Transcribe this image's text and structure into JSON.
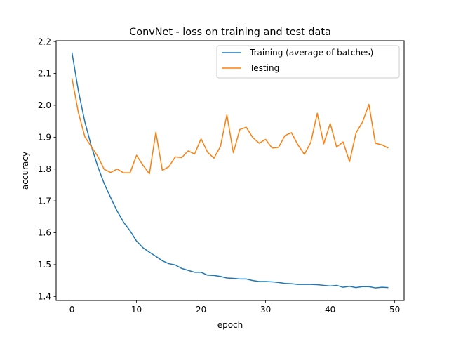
{
  "chart_data": {
    "type": "line",
    "title": "ConvNet - loss on training and test data",
    "xlabel": "epoch",
    "ylabel": "accuracy",
    "xlim": [
      -2.45,
      51.45
    ],
    "ylim": [
      1.3875,
      2.2025
    ],
    "xticks": [
      0,
      10,
      20,
      30,
      40,
      50
    ],
    "yticks": [
      1.4,
      1.5,
      1.6,
      1.7,
      1.8,
      1.9,
      2.0,
      2.1,
      2.2
    ],
    "grid": false,
    "legend_position": "top-right",
    "x": [
      0,
      1,
      2,
      3,
      4,
      5,
      6,
      7,
      8,
      9,
      10,
      11,
      12,
      13,
      14,
      15,
      16,
      17,
      18,
      19,
      20,
      21,
      22,
      23,
      24,
      25,
      26,
      27,
      28,
      29,
      30,
      31,
      32,
      33,
      34,
      35,
      36,
      37,
      38,
      39,
      40,
      41,
      42,
      43,
      44,
      45,
      46,
      47,
      48,
      49
    ],
    "series": [
      {
        "name": "Training (average of batches)",
        "color": "#1f77b4",
        "values": [
          2.166,
          2.045,
          1.948,
          1.872,
          1.808,
          1.754,
          1.71,
          1.668,
          1.633,
          1.606,
          1.574,
          1.553,
          1.539,
          1.526,
          1.512,
          1.503,
          1.499,
          1.488,
          1.482,
          1.476,
          1.476,
          1.467,
          1.466,
          1.463,
          1.458,
          1.457,
          1.455,
          1.455,
          1.45,
          1.447,
          1.447,
          1.446,
          1.444,
          1.441,
          1.44,
          1.438,
          1.438,
          1.438,
          1.437,
          1.435,
          1.433,
          1.435,
          1.429,
          1.432,
          1.428,
          1.431,
          1.431,
          1.427,
          1.429,
          1.428
        ]
      },
      {
        "name": "Testing",
        "color": "#ff7f0e",
        "values": [
          2.085,
          1.977,
          1.901,
          1.87,
          1.84,
          1.799,
          1.789,
          1.8,
          1.788,
          1.788,
          1.843,
          1.812,
          1.785,
          1.916,
          1.796,
          1.807,
          1.838,
          1.836,
          1.857,
          1.847,
          1.895,
          1.853,
          1.834,
          1.871,
          1.97,
          1.851,
          1.924,
          1.931,
          1.899,
          1.881,
          1.893,
          1.866,
          1.868,
          1.905,
          1.914,
          1.876,
          1.846,
          1.884,
          1.975,
          1.879,
          1.943,
          1.869,
          1.885,
          1.823,
          1.913,
          1.947,
          2.003,
          1.881,
          1.876,
          1.866
        ]
      }
    ]
  }
}
